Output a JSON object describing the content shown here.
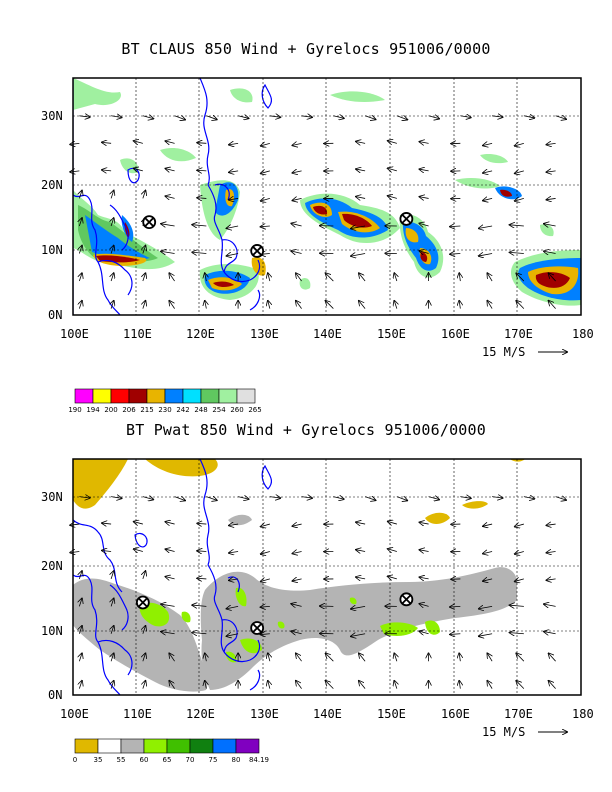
{
  "panels": [
    {
      "title": "BT CLAUS 850 Wind + Gyrelocs 951006/0000",
      "x_ticks": [
        "100E",
        "110E",
        "120E",
        "130E",
        "140E",
        "150E",
        "160E",
        "170E",
        "180"
      ],
      "y_ticks": [
        "0N",
        "10N",
        "20N",
        "30N"
      ],
      "vector_label": "15 M/S",
      "colorbar": {
        "labels": [
          "190",
          "194",
          "200",
          "206",
          "215",
          "230",
          "242",
          "248",
          "254",
          "260",
          "265"
        ],
        "colors": [
          "#ff00ff",
          "#ffff00",
          "#ff0000",
          "#a00000",
          "#e8b400",
          "#0080ff",
          "#00e0ff",
          "#60c860",
          "#a0f0a0",
          "#e0e0e0"
        ]
      },
      "gyre_locations": [
        {
          "lon": 112,
          "lat": 14.5
        },
        {
          "lon": 129,
          "lat": 10
        },
        {
          "lon": 152.5,
          "lat": 15
        }
      ]
    },
    {
      "title": "BT Pwat 850 Wind + Gyrelocs 951006/0000",
      "x_ticks": [
        "100E",
        "110E",
        "120E",
        "130E",
        "140E",
        "150E",
        "160E",
        "170E",
        "180"
      ],
      "y_ticks": [
        "0N",
        "10N",
        "20N",
        "30N"
      ],
      "vector_label": "15 M/S",
      "colorbar": {
        "labels": [
          "0",
          "35",
          "55",
          "60",
          "65",
          "70",
          "75",
          "80",
          "84.19"
        ],
        "colors": [
          "#e0b800",
          "#ffffff",
          "#b4b4b4",
          "#90f000",
          "#40c000",
          "#108010",
          "#0070ff",
          "#8000c0"
        ]
      },
      "gyre_locations": [
        {
          "lon": 111,
          "lat": 14.5
        },
        {
          "lon": 129,
          "lat": 10.5
        },
        {
          "lon": 152.5,
          "lat": 15
        }
      ]
    }
  ]
}
